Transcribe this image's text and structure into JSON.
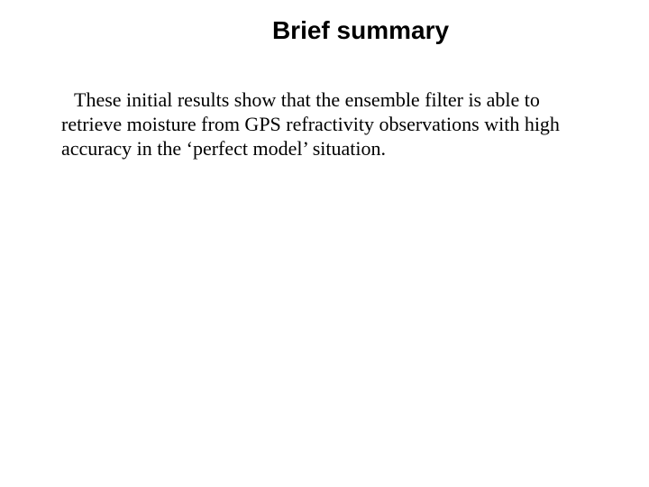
{
  "slide": {
    "title": "Brief summary",
    "body": "These initial results show that the ensemble filter is able to retrieve moisture from GPS refractivity observations with high accuracy in the ‘perfect model’ situation.",
    "background_color": "#ffffff",
    "text_color": "#000000",
    "title_font_family": "Arial",
    "title_font_size": 28,
    "title_font_weight": "bold",
    "body_font_family": "Times New Roman",
    "body_font_size": 22
  }
}
